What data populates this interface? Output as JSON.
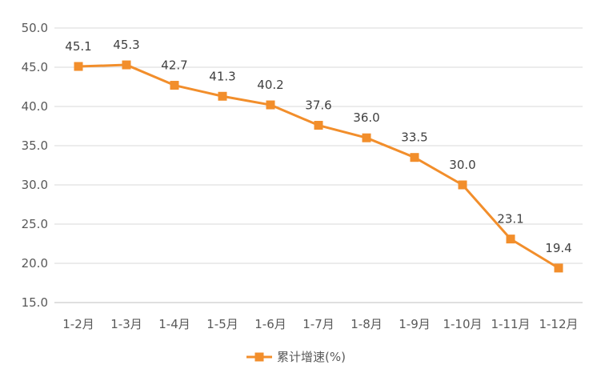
{
  "chart_data": {
    "type": "line",
    "categories": [
      "1-2月",
      "1-3月",
      "1-4月",
      "1-5月",
      "1-6月",
      "1-7月",
      "1-8月",
      "1-9月",
      "1-10月",
      "1-11月",
      "1-12月"
    ],
    "series": [
      {
        "name": "累计增速(%)",
        "values": [
          45.1,
          45.3,
          42.7,
          41.3,
          40.2,
          37.6,
          36.0,
          33.5,
          30.0,
          23.1,
          19.4
        ],
        "labels": [
          "45.1",
          "45.3",
          "42.7",
          "41.3",
          "40.2",
          "37.6",
          "36.0",
          "33.5",
          "30.0",
          "23.1",
          "19.4"
        ],
        "color": "#F28E2B",
        "marker": "square"
      }
    ],
    "yticks": [
      "15.0",
      "20.0",
      "25.0",
      "30.0",
      "35.0",
      "40.0",
      "45.0",
      "50.0"
    ],
    "ylim": [
      15,
      50
    ],
    "grid": true,
    "legend_position": "bottom",
    "title": "",
    "xlabel": "",
    "ylabel": ""
  }
}
